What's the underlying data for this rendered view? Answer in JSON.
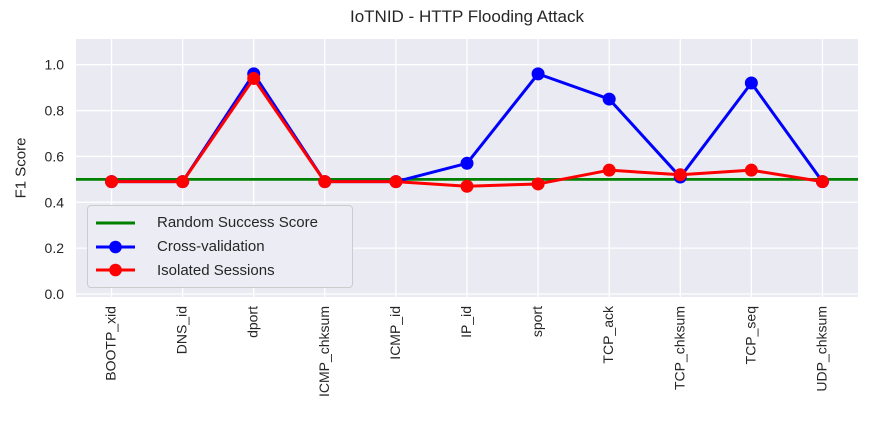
{
  "chart_data": {
    "type": "line",
    "title": "IoTNID - HTTP Flooding Attack",
    "ylabel": "F1 Score",
    "xlabel": "",
    "categories": [
      "BOOTP_xid",
      "DNS_id",
      "dport",
      "ICMP_chksum",
      "ICMP_id",
      "IP_id",
      "sport",
      "TCP_ack",
      "TCP_chksum",
      "TCP_seq",
      "UDP_chksum"
    ],
    "series": [
      {
        "name": "Random Success Score",
        "kind": "hline",
        "color": "#008000",
        "marker": false,
        "value": 0.5
      },
      {
        "name": "Cross-validation",
        "kind": "line",
        "color": "#0000FF",
        "marker": true,
        "values": [
          0.49,
          0.49,
          0.96,
          0.49,
          0.49,
          0.57,
          0.96,
          0.85,
          0.51,
          0.92,
          0.49
        ]
      },
      {
        "name": "Isolated Sessions",
        "kind": "line",
        "color": "#FF0000",
        "marker": true,
        "values": [
          0.49,
          0.49,
          0.94,
          0.49,
          0.49,
          0.47,
          0.48,
          0.54,
          0.52,
          0.54,
          0.49
        ]
      }
    ],
    "yticks": [
      "0.0",
      "0.2",
      "0.4",
      "0.6",
      "0.8",
      "1.0"
    ],
    "ylim": [
      -0.013,
      1.112
    ],
    "grid": true,
    "legend_position": "lower-left",
    "colors": {
      "page_bg": "#FFFFFF",
      "plot_bg": "#EAEAF2",
      "grid": "#FFFFFF",
      "text": "#262626"
    }
  }
}
